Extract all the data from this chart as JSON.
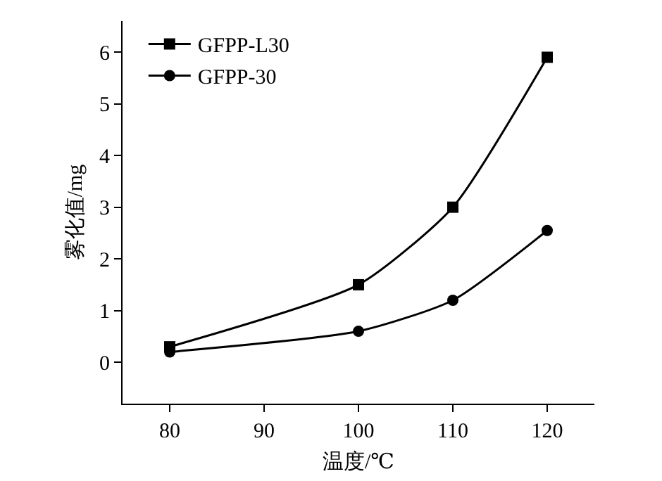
{
  "chart_data": {
    "type": "line",
    "xlabel": "温度/℃",
    "ylabel": "雾化值/mg",
    "x": [
      80,
      100,
      110,
      120
    ],
    "series": [
      {
        "name": "GFPP-L30",
        "color": "#000000",
        "marker": "square",
        "values": [
          0.3,
          1.5,
          3.0,
          5.9
        ]
      },
      {
        "name": "GFPP-30",
        "color": "#000000",
        "marker": "circle",
        "values": [
          0.2,
          0.6,
          1.2,
          2.55
        ]
      }
    ],
    "xlim": [
      75,
      125
    ],
    "xticks": [
      80,
      90,
      100,
      110,
      120
    ],
    "ylim": [
      -0.8,
      6.6
    ],
    "yticks": [
      0,
      1,
      2,
      3,
      4,
      5,
      6
    ],
    "grid": false,
    "legend": "top left",
    "line_style": "solid"
  }
}
